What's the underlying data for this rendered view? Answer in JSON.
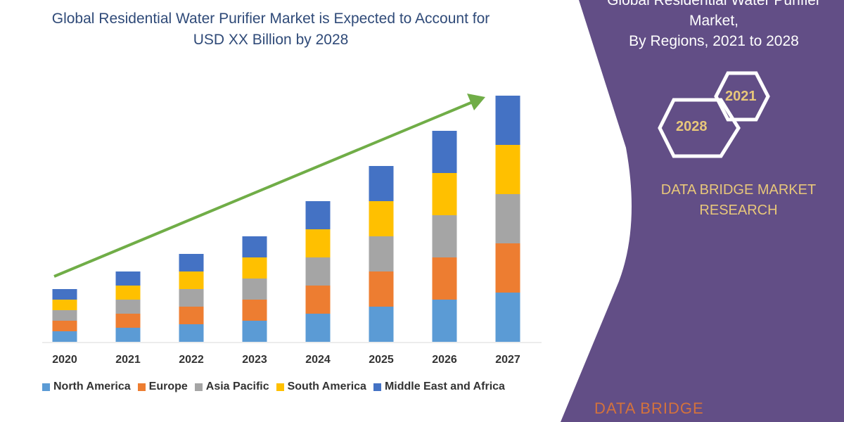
{
  "title": "Global Residential Water Purifier Market is Expected to Account for USD XX Billion by 2028",
  "panel": {
    "title_lines": [
      "Global Residential Water Purifier",
      "Market,",
      "By Regions, 2021 to 2028"
    ],
    "hex_left": "2028",
    "hex_right": "2021",
    "brand_lines": [
      "DATA BRIDGE MARKET",
      "RESEARCH"
    ],
    "logo_text": "DATA BRIDGE",
    "color": "#624e86",
    "accent": "#e8c77a"
  },
  "chart_data": {
    "type": "bar",
    "stacked": true,
    "categories": [
      "2020",
      "2021",
      "2022",
      "2023",
      "2024",
      "2025",
      "2026",
      "2027"
    ],
    "series": [
      {
        "name": "North America",
        "color": "#5b9bd5",
        "values": [
          15,
          20,
          25,
          30,
          40,
          50,
          60,
          70
        ]
      },
      {
        "name": "Europe",
        "color": "#ed7d31",
        "values": [
          15,
          20,
          25,
          30,
          40,
          50,
          60,
          70
        ]
      },
      {
        "name": "Asia Pacific",
        "color": "#a5a5a5",
        "values": [
          15,
          20,
          25,
          30,
          40,
          50,
          60,
          70
        ]
      },
      {
        "name": "South America",
        "color": "#ffc000",
        "values": [
          15,
          20,
          25,
          30,
          40,
          50,
          60,
          70
        ]
      },
      {
        "name": "Middle East and Africa",
        "color": "#4472c4",
        "values": [
          15,
          20,
          25,
          30,
          40,
          50,
          60,
          70
        ]
      }
    ],
    "trend_arrow_color": "#70ad47",
    "grid": false,
    "legend": "bottom",
    "y_axis_shown": false
  }
}
